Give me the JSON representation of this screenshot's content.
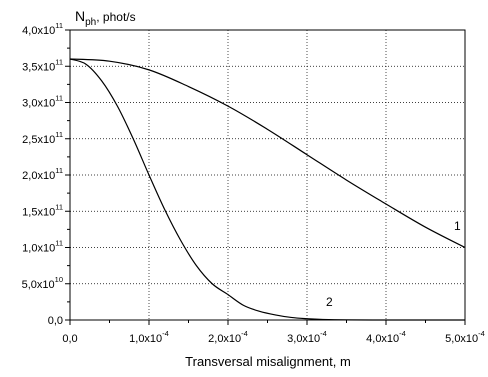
{
  "chart_data": {
    "type": "line",
    "ylabel": "N",
    "ylabel_sub": "ph",
    "ylabel_unit": ", phot/s",
    "xlabel": "Transversal misalignment, m",
    "xlim": [
      0,
      0.0005
    ],
    "ylim": [
      0,
      400000000000
    ],
    "grid": "dotted, at every labeled tick",
    "x_ticks": [
      {
        "mantissa": "0,0",
        "exp": ""
      },
      {
        "mantissa": "1,0x10",
        "exp": "-4"
      },
      {
        "mantissa": "2,0x10",
        "exp": "-4"
      },
      {
        "mantissa": "3,0x10",
        "exp": "-4"
      },
      {
        "mantissa": "4,0x10",
        "exp": "-4"
      },
      {
        "mantissa": "5,0x10",
        "exp": "-4"
      }
    ],
    "y_ticks": [
      {
        "mantissa": "0,0",
        "exp": ""
      },
      {
        "mantissa": "5,0x10",
        "exp": "10"
      },
      {
        "mantissa": "1,0x10",
        "exp": "11"
      },
      {
        "mantissa": "1,5x10",
        "exp": "11"
      },
      {
        "mantissa": "2,0x10",
        "exp": "11"
      },
      {
        "mantissa": "2,5x10",
        "exp": "11"
      },
      {
        "mantissa": "3,0x10",
        "exp": "11"
      },
      {
        "mantissa": "3,5x10",
        "exp": "11"
      },
      {
        "mantissa": "4,0x10",
        "exp": "11"
      }
    ],
    "series": [
      {
        "name": "1",
        "x": [
          0,
          5e-05,
          0.0001,
          0.00015,
          0.0002,
          0.00025,
          0.0003,
          0.00035,
          0.0004,
          0.00045,
          0.0005
        ],
        "y": [
          360000000000,
          357000000000,
          345000000000,
          322000000000,
          295000000000,
          263000000000,
          228000000000,
          193000000000,
          160000000000,
          128000000000,
          100000000000
        ]
      },
      {
        "name": "2",
        "x": [
          0,
          2e-05,
          4e-05,
          6e-05,
          8e-05,
          0.0001,
          0.00012,
          0.00014,
          0.00016,
          0.00018,
          0.0002,
          0.00022,
          0.00024,
          0.00026,
          0.00028,
          0.0003,
          0.00032,
          0.00035,
          0.0004,
          0.00045,
          0.0005
        ],
        "y": [
          360000000000,
          353000000000,
          330000000000,
          295000000000,
          250000000000,
          200000000000,
          152000000000,
          110000000000,
          75000000000,
          50000000000,
          35000000000,
          20000000000,
          12000000000,
          7000000000,
          3500000000,
          1800000000,
          800000000,
          200000000,
          0,
          0,
          0
        ]
      }
    ]
  }
}
